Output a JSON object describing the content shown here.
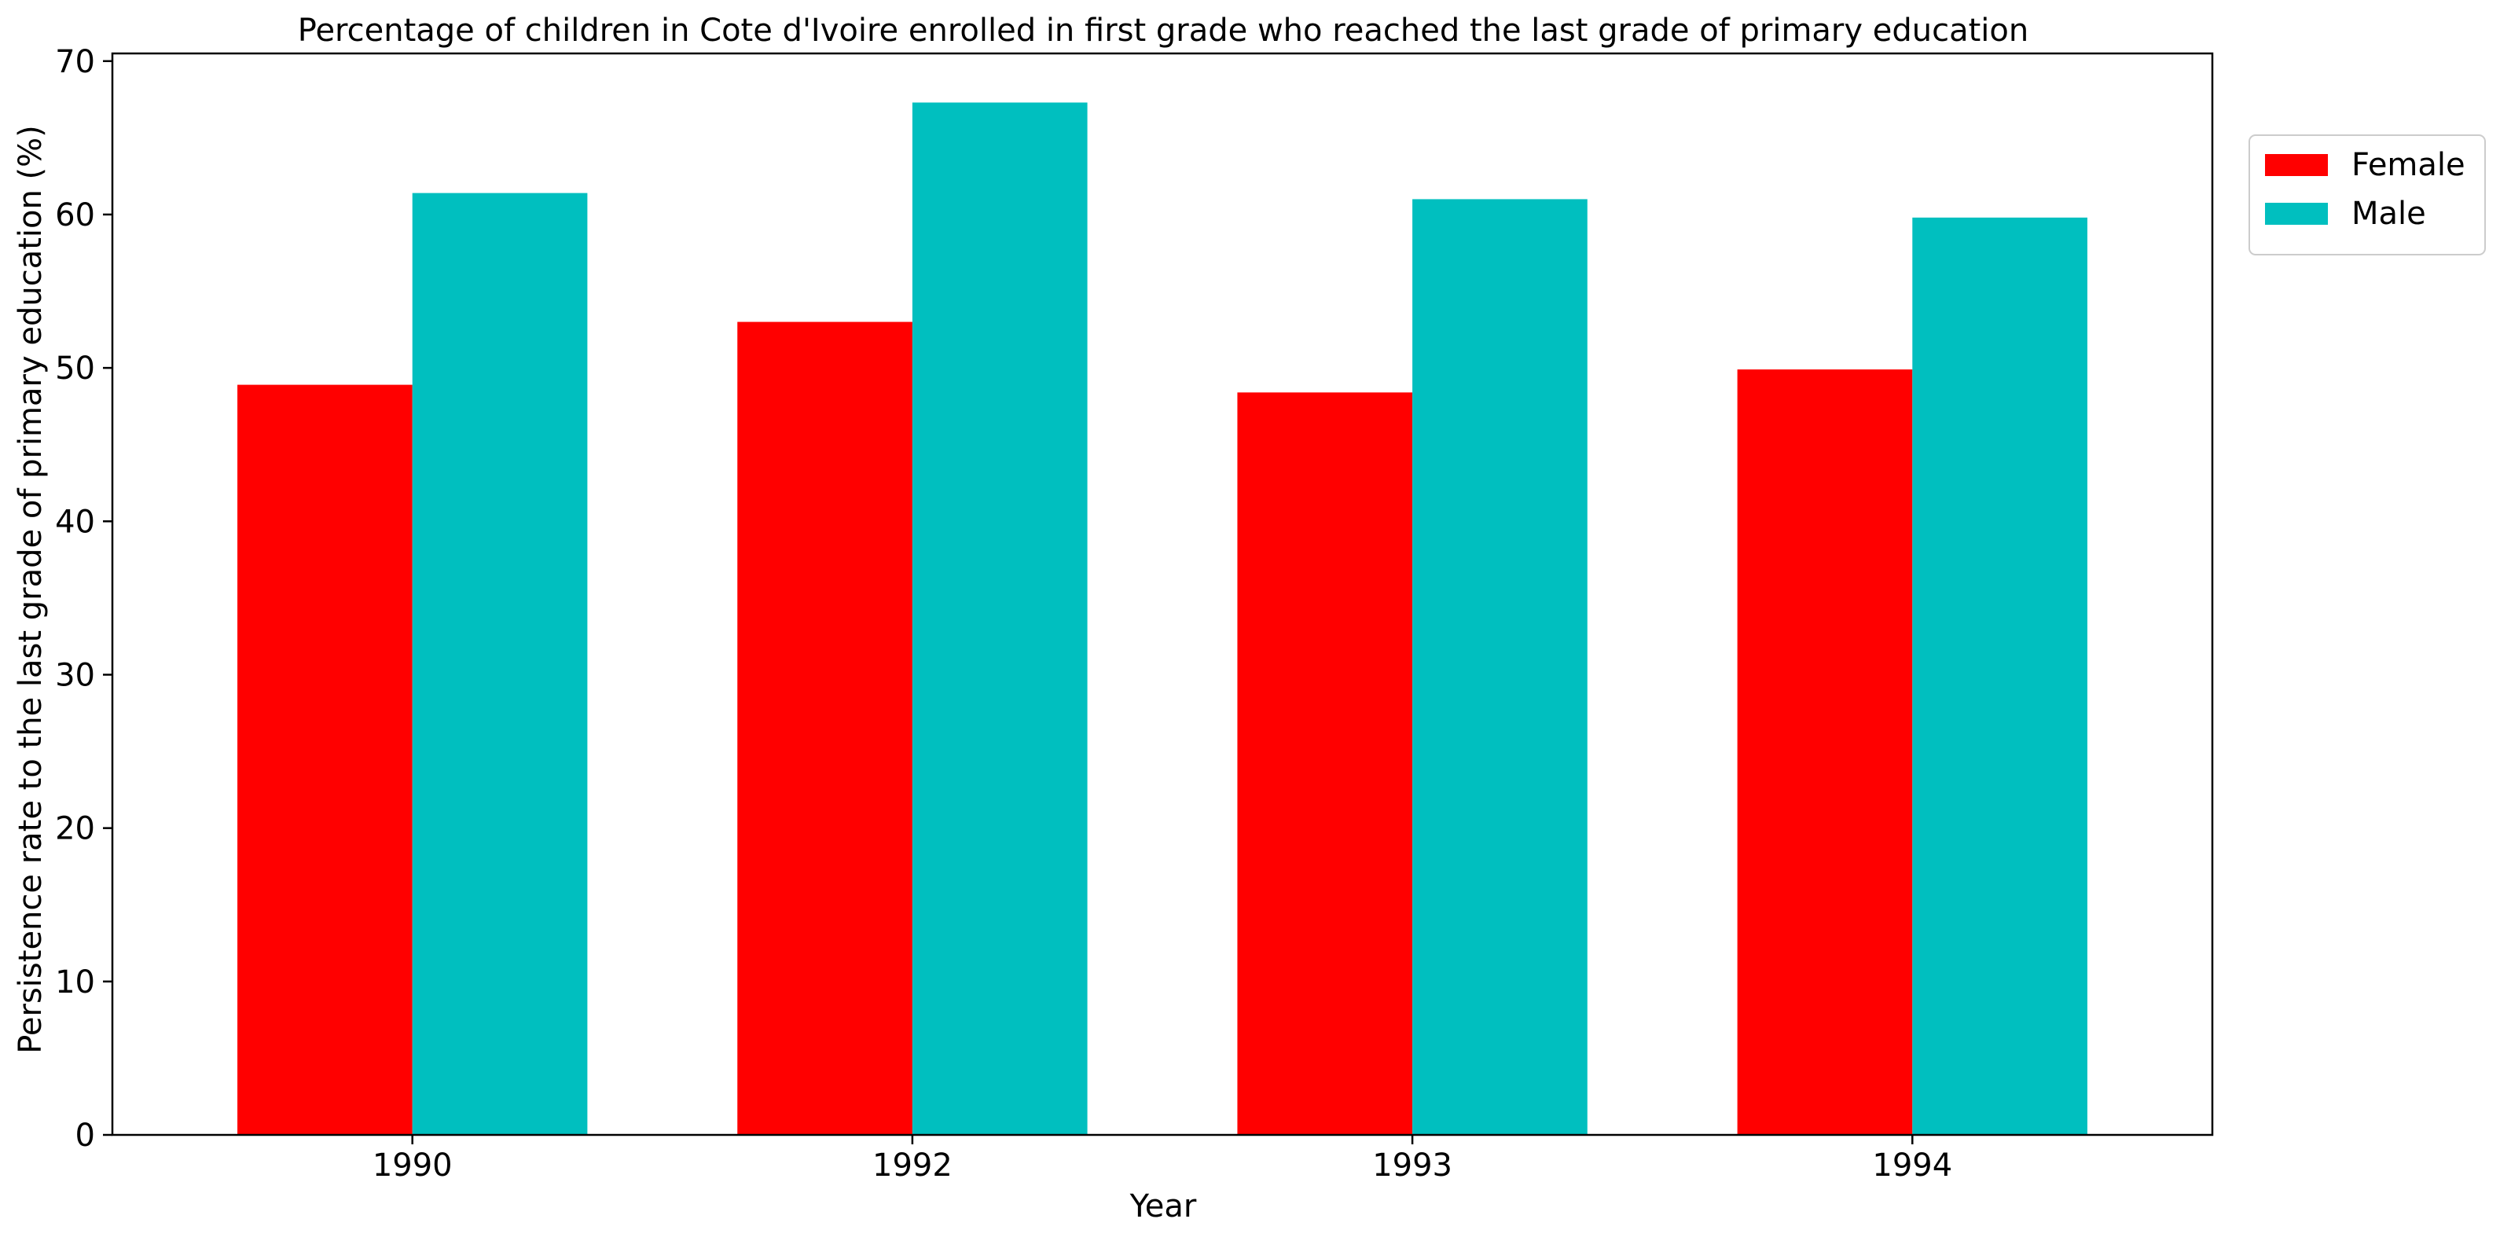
{
  "chart_data": {
    "type": "bar",
    "title": "Percentage of children in Cote d'Ivoire enrolled in first grade who reached the last grade of primary education",
    "xlabel": "Year",
    "ylabel": "Persistence rate to the last grade of primary education (%)",
    "categories": [
      "1990",
      "1992",
      "1993",
      "1994"
    ],
    "series": [
      {
        "name": "Female",
        "color": "#ff0000",
        "values": [
          48.9,
          53.0,
          48.4,
          49.9
        ]
      },
      {
        "name": "Male",
        "color": "#00bfbf",
        "values": [
          61.4,
          67.3,
          61.0,
          59.8
        ]
      }
    ],
    "ylim": [
      0,
      70.5
    ],
    "yticks": [
      0,
      10,
      20,
      30,
      40,
      50,
      60,
      70
    ],
    "grid": false,
    "legend": "top-right, outside plot"
  }
}
